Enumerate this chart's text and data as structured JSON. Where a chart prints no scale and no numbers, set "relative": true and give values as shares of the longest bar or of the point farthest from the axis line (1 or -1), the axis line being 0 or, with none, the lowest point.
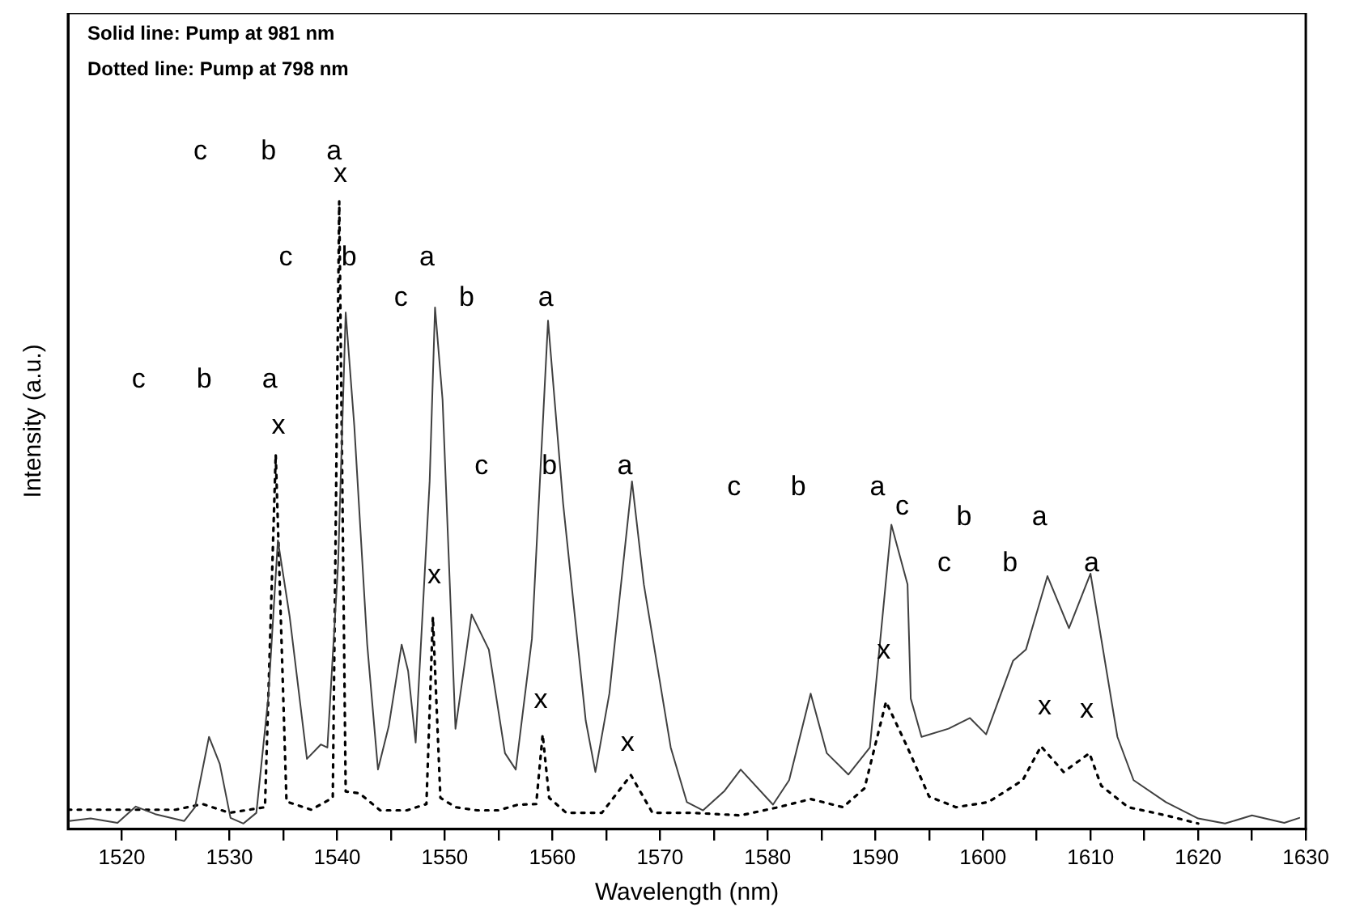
{
  "chart_data": {
    "type": "line",
    "relative": true,
    "xlabel": "Wavelength (nm)",
    "ylabel": "Intensity (a.u.)",
    "xlim": [
      1515,
      1630
    ],
    "xticks": [
      1520,
      {
        "value": 1525,
        "label": null
      },
      1530,
      {
        "value": 1535,
        "label": null
      },
      1540,
      {
        "value": 1545,
        "label": null
      },
      1550,
      {
        "value": 1555,
        "label": null
      },
      1560,
      {
        "value": 1565,
        "label": null
      },
      1570,
      {
        "value": 1575,
        "label": null
      },
      1580,
      {
        "value": 1585,
        "label": null
      },
      1590,
      {
        "value": 1595,
        "label": null
      },
      1600,
      {
        "value": 1605,
        "label": null
      },
      1610,
      {
        "value": 1615,
        "label": null
      },
      1620,
      {
        "value": 1625,
        "label": null
      },
      1630
    ],
    "grid": false,
    "legend": false,
    "marker": "none",
    "series": [
      {
        "color": "#404040",
        "line_style": "solid",
        "x": [
          1515.1,
          1517.1,
          1519.6,
          1521.3,
          1523.1,
          1525.8,
          1526.8,
          1528.1,
          1529.1,
          1530.1,
          1531.3,
          1532.5,
          1533.6,
          1534.5,
          1535.6,
          1537.2,
          1538.5,
          1539.1,
          1540.1,
          1540.8,
          1541.6,
          1542.8,
          1543.8,
          1544.8,
          1546.0,
          1546.6,
          1547.3,
          1548.6,
          1549.1,
          1549.8,
          1551.0,
          1552.5,
          1554.1,
          1555.6,
          1556.6,
          1558.1,
          1559.6,
          1561.0,
          1563.1,
          1564.0,
          1565.3,
          1567.4,
          1568.5,
          1571.0,
          1572.5,
          1574.0,
          1576.0,
          1577.5,
          1580.5,
          1582.0,
          1584.0,
          1585.5,
          1587.5,
          1589.5,
          1591.5,
          1593.0,
          1593.3,
          1594.3,
          1596.8,
          1598.8,
          1600.3,
          1602.8,
          1604.0,
          1606.0,
          1608.0,
          1610.0,
          1612.5,
          1614.0,
          1617.0,
          1620.0,
          1622.5,
          1625.0,
          1628.0,
          1629.4
        ],
        "values": [
          0.013,
          0.017,
          0.01,
          0.036,
          0.024,
          0.013,
          0.035,
          0.147,
          0.104,
          0.018,
          0.009,
          0.026,
          0.208,
          0.46,
          0.338,
          0.112,
          0.135,
          0.13,
          0.424,
          0.823,
          0.642,
          0.294,
          0.095,
          0.164,
          0.294,
          0.252,
          0.138,
          0.554,
          0.831,
          0.684,
          0.16,
          0.342,
          0.286,
          0.121,
          0.095,
          0.303,
          0.81,
          0.519,
          0.173,
          0.091,
          0.216,
          0.554,
          0.39,
          0.13,
          0.043,
          0.03,
          0.061,
          0.095,
          0.039,
          0.078,
          0.216,
          0.121,
          0.087,
          0.13,
          0.485,
          0.39,
          0.208,
          0.147,
          0.16,
          0.177,
          0.151,
          0.268,
          0.286,
          0.403,
          0.32,
          0.407,
          0.147,
          0.078,
          0.043,
          0.017,
          0.009,
          0.022,
          0.01,
          0.018
        ]
      },
      {
        "color": "#000000",
        "line_style": "dotted",
        "x": [
          1515,
          1520,
          1525,
          1527.5,
          1530,
          1533.3,
          1534.3,
          1535.3,
          1537.6,
          1539.6,
          1540.2,
          1540.8,
          1542.1,
          1544,
          1546.5,
          1548.3,
          1548.9,
          1549.6,
          1551,
          1553,
          1555,
          1556.8,
          1558.5,
          1559.1,
          1559.7,
          1561.3,
          1564.6,
          1567.3,
          1569.3,
          1573.0,
          1577.5,
          1581.0,
          1584.0,
          1587.0,
          1589.0,
          1591.0,
          1593.0,
          1595.0,
          1597.5,
          1600.5,
          1603.7,
          1605.4,
          1607.5,
          1609.9,
          1611.0,
          1613.5,
          1617.0,
          1620.0
        ],
        "values": [
          0.031,
          0.031,
          0.031,
          0.04,
          0.026,
          0.035,
          0.597,
          0.044,
          0.031,
          0.05,
          1.0,
          0.06,
          0.057,
          0.03,
          0.03,
          0.04,
          0.338,
          0.05,
          0.035,
          0.03,
          0.03,
          0.039,
          0.04,
          0.151,
          0.05,
          0.026,
          0.026,
          0.086,
          0.026,
          0.026,
          0.022,
          0.035,
          0.048,
          0.035,
          0.065,
          0.203,
          0.13,
          0.052,
          0.035,
          0.043,
          0.078,
          0.132,
          0.091,
          0.121,
          0.069,
          0.035,
          0.022,
          0.009
        ]
      }
    ],
    "annotations": [
      "Solid line: Pump at 981 nm",
      "Dotted line: Pump at 798 nm",
      "c",
      "b",
      "a",
      "x",
      "c",
      "b",
      "a",
      "c",
      "b",
      "a",
      "c",
      "b",
      "a",
      "x",
      "c",
      "b",
      "a",
      "c",
      "b",
      "a",
      "c",
      "b",
      "a",
      "c",
      "b",
      "a",
      "x",
      "x",
      "x",
      "x",
      "x",
      "x"
    ]
  }
}
